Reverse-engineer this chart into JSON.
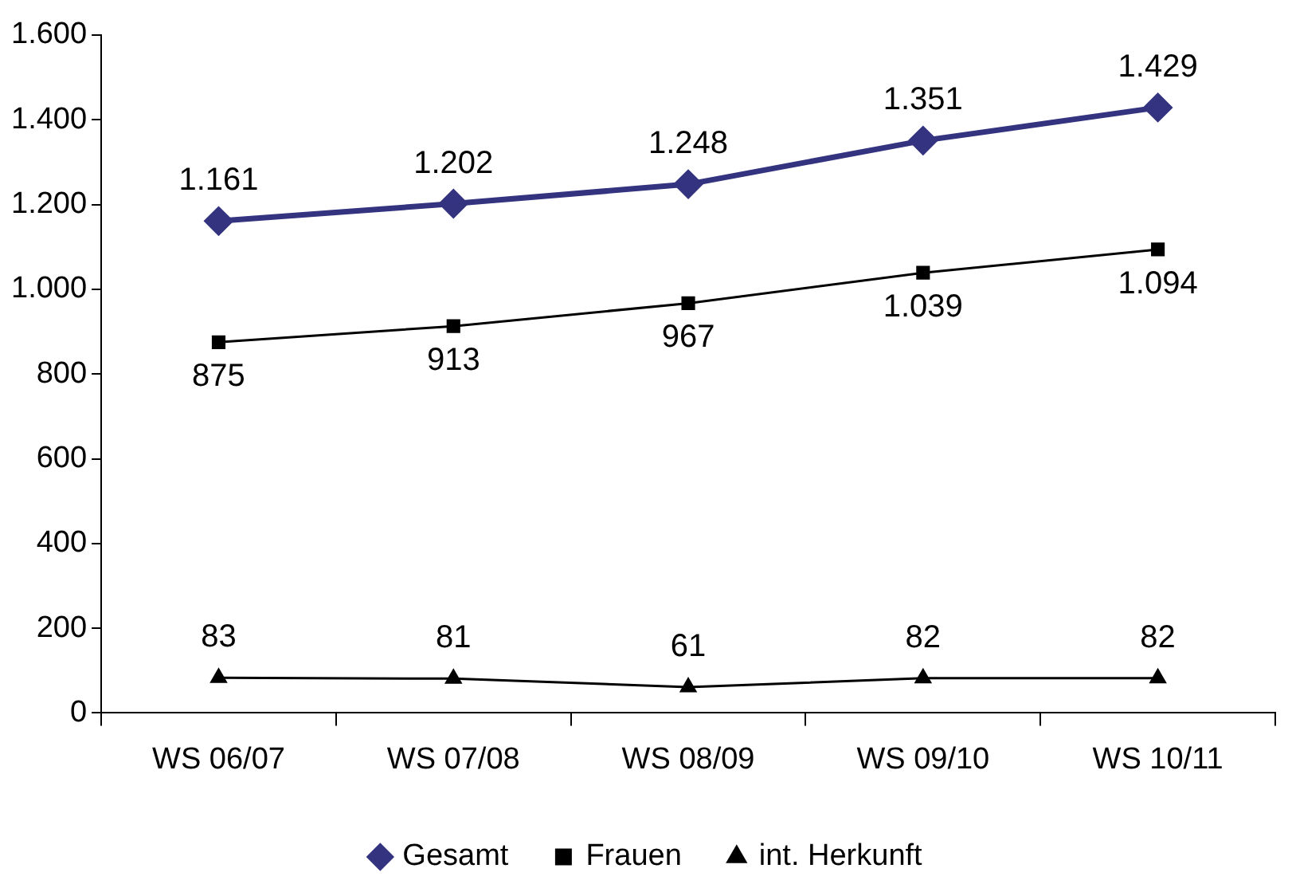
{
  "chart_data": {
    "type": "line",
    "categories": [
      "WS 06/07",
      "WS 07/08",
      "WS 08/09",
      "WS 09/10",
      "WS 10/11"
    ],
    "series": [
      {
        "name": "Gesamt",
        "color": "#333380",
        "marker": "diamond",
        "values": [
          1161,
          1202,
          1248,
          1351,
          1429
        ],
        "value_labels": [
          "1.161",
          "1.202",
          "1.248",
          "1.351",
          "1.429"
        ]
      },
      {
        "name": "Frauen",
        "color": "#000000",
        "marker": "square",
        "values": [
          875,
          913,
          967,
          1039,
          1094
        ],
        "value_labels": [
          "875",
          "913",
          "967",
          "1.039",
          "1.094"
        ]
      },
      {
        "name": "int. Herkunft",
        "color": "#000000",
        "marker": "triangle",
        "values": [
          83,
          81,
          61,
          82,
          82
        ],
        "value_labels": [
          "83",
          "81",
          "61",
          "82",
          "82"
        ]
      }
    ],
    "ylim": [
      0,
      1600
    ],
    "yticks": [
      0,
      200,
      400,
      600,
      800,
      {
        "value": 1000,
        "label": "1.000"
      },
      {
        "value": 1200,
        "label": "1.200"
      },
      {
        "value": 1400,
        "label": "1.400"
      },
      {
        "value": 1600,
        "label": "1.600"
      }
    ],
    "grid": false,
    "legend": "bottom",
    "line_style": "solid"
  }
}
